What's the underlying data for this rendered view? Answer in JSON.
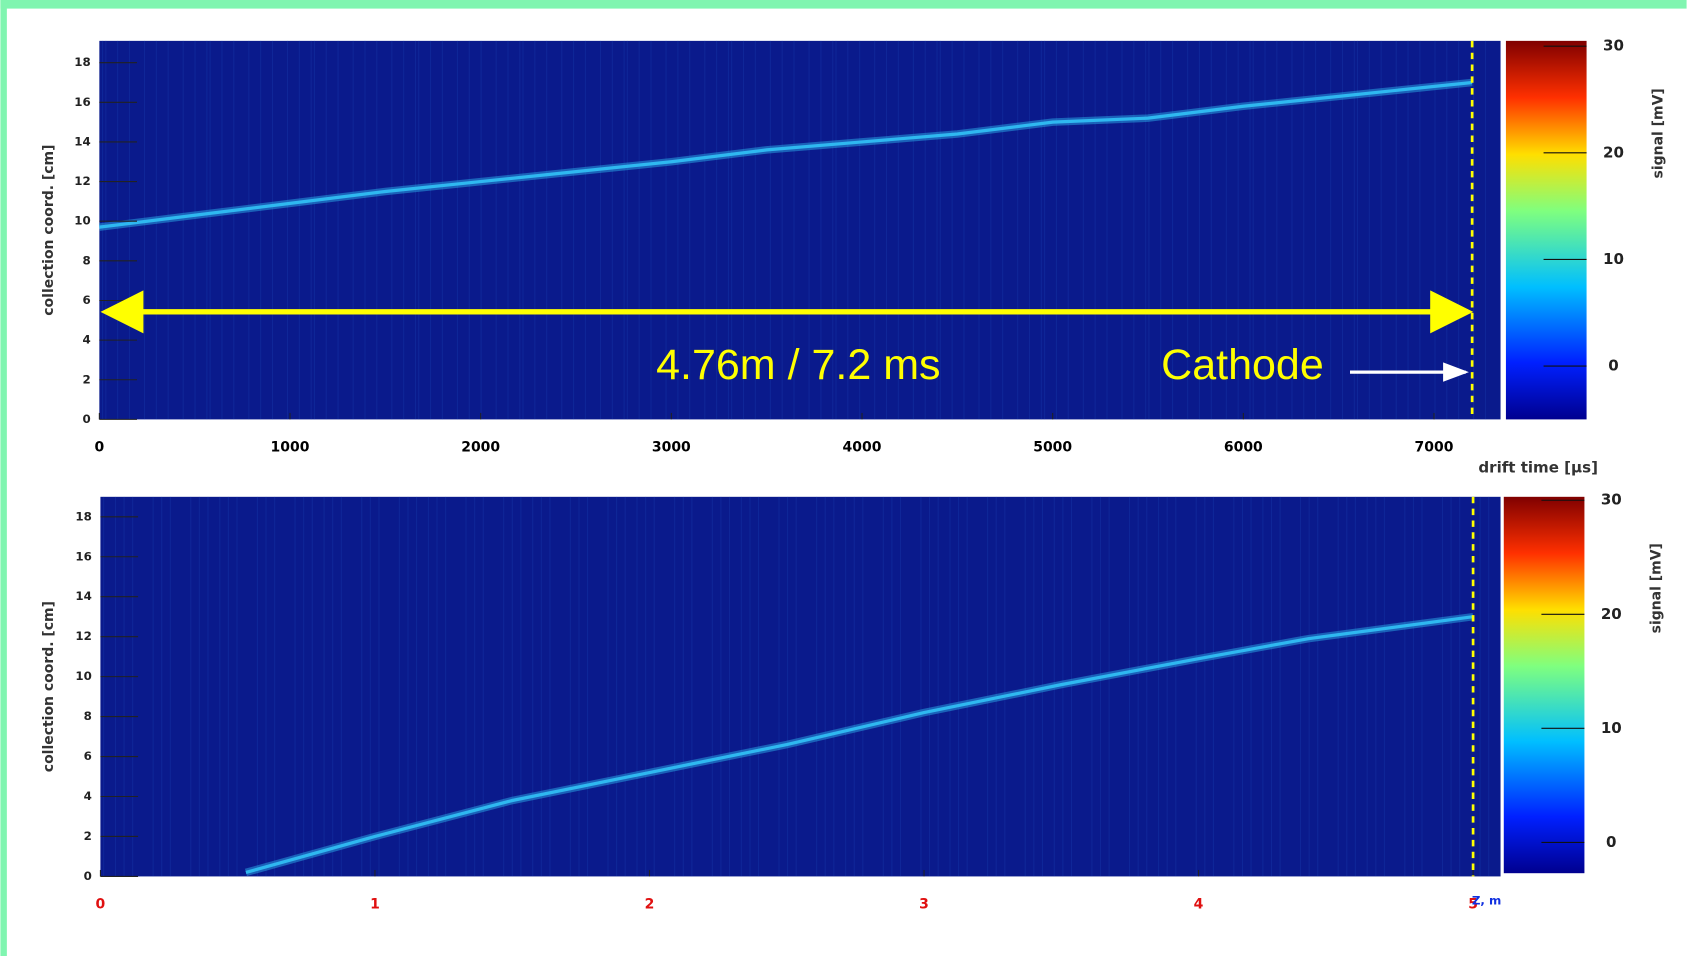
{
  "chart_data": [
    {
      "type": "line",
      "y_label": "collection coord. [cm]",
      "x_label": "drift time [µs]",
      "xlim": [
        0,
        7349
      ],
      "ylim": [
        0,
        19.1
      ],
      "xticks": [
        0,
        1000,
        2000,
        3000,
        4000,
        5000,
        6000,
        7000
      ],
      "yticks": [
        0,
        2,
        4,
        6,
        8,
        10,
        12,
        14,
        16,
        18
      ],
      "tick_color": "#000000",
      "background": "#0a1a8c",
      "x": [
        0,
        500,
        1000,
        1500,
        2000,
        2500,
        3000,
        3500,
        4000,
        4500,
        5000,
        5500,
        6000,
        6500,
        7200
      ],
      "series": [
        {
          "color": "#2fb8f0",
          "values": [
            9.7,
            10.3,
            10.9,
            11.5,
            12.0,
            12.5,
            13.0,
            13.6,
            14.0,
            14.4,
            15.0,
            15.2,
            15.8,
            16.3,
            17.0
          ]
        }
      ],
      "cathode": 7200,
      "colorbar": {
        "label": "signal [mV]",
        "lim": [
          -5,
          30.5
        ],
        "ticks": [
          0,
          10,
          20,
          30
        ]
      },
      "annotations": [
        "4.76m / 7.2 ms",
        "Cathode"
      ]
    },
    {
      "type": "line",
      "y_label": "collection coord. [cm]",
      "x_label": "Z, m",
      "xlim": [
        0,
        5.1
      ],
      "ylim": [
        0,
        19
      ],
      "xticks": [
        0,
        1,
        2,
        3,
        4,
        5
      ],
      "yticks": [
        0,
        2,
        4,
        6,
        8,
        10,
        12,
        14,
        16,
        18
      ],
      "tick_color": "#e01010",
      "background": "#0a1a8c",
      "x": [
        0.53,
        1,
        1.5,
        2,
        2.5,
        3,
        3.5,
        4,
        4.4,
        5
      ],
      "series": [
        {
          "color": "#2fb8f0",
          "values": [
            0.2,
            2.0,
            3.8,
            5.2,
            6.6,
            8.2,
            9.6,
            10.9,
            11.9,
            13.0
          ]
        }
      ],
      "cathode": 5,
      "colorbar": {
        "label": "signal [mV]",
        "lim": [
          -2.7,
          30.3
        ],
        "ticks": [
          0,
          10,
          20,
          30
        ]
      }
    }
  ]
}
